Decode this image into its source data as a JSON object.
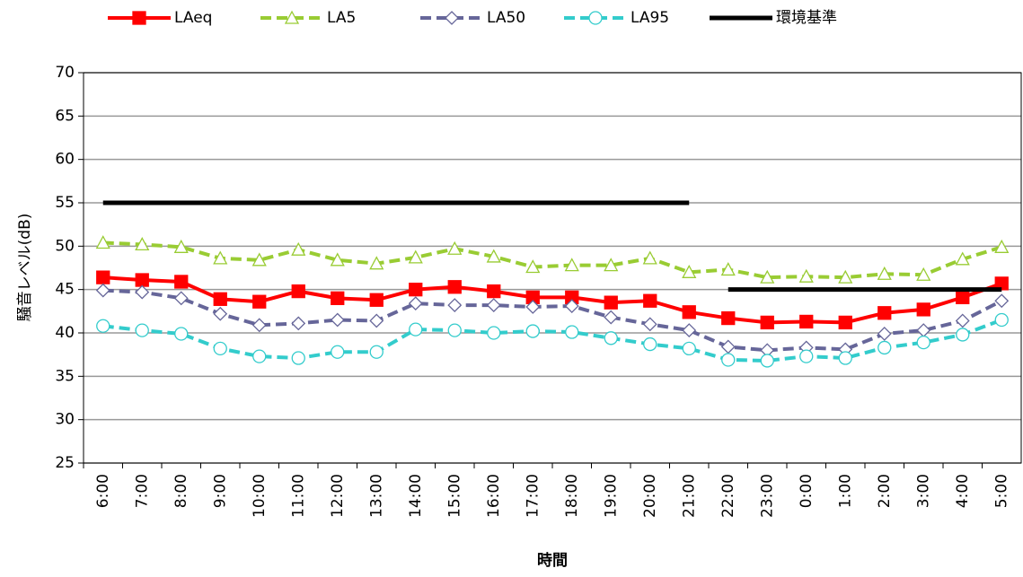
{
  "chart_data": {
    "type": "line",
    "y_label": "騒音レベル(dB)",
    "x_label": "時間",
    "categories": [
      "6:00",
      "7:00",
      "8:00",
      "9:00",
      "10:00",
      "11:00",
      "12:00",
      "13:00",
      "14:00",
      "15:00",
      "16:00",
      "17:00",
      "18:00",
      "19:00",
      "20:00",
      "21:00",
      "22:00",
      "23:00",
      "0:00",
      "1:00",
      "2:00",
      "3:00",
      "4:00",
      "5:00"
    ],
    "ylim": [
      25,
      70
    ],
    "yticks": [
      25,
      30,
      35,
      40,
      45,
      50,
      55,
      60,
      65,
      70
    ],
    "grid": true,
    "legend": "top",
    "series": [
      {
        "name": "LAeq",
        "color": "#ff0000",
        "marker": "square",
        "dash": "solid",
        "values": [
          46.4,
          46.1,
          45.9,
          43.9,
          43.6,
          44.8,
          44.0,
          43.8,
          45.0,
          45.3,
          44.8,
          44.1,
          44.1,
          43.5,
          43.7,
          42.4,
          41.7,
          41.2,
          41.3,
          41.2,
          42.3,
          42.7,
          44.1,
          45.7
        ]
      },
      {
        "name": "LA5",
        "color": "#99cc33",
        "marker": "triangle",
        "dash": "dashed",
        "values": [
          50.4,
          50.2,
          49.9,
          48.6,
          48.4,
          49.6,
          48.4,
          48.0,
          48.7,
          49.7,
          48.8,
          47.6,
          47.8,
          47.8,
          48.6,
          47.0,
          47.3,
          46.4,
          46.5,
          46.4,
          46.8,
          46.7,
          48.5,
          49.9
        ]
      },
      {
        "name": "LA50",
        "color": "#666699",
        "marker": "diamond",
        "dash": "dashed",
        "values": [
          44.9,
          44.7,
          44.0,
          42.2,
          40.9,
          41.1,
          41.5,
          41.4,
          43.4,
          43.2,
          43.2,
          43.0,
          43.1,
          41.8,
          41.0,
          40.3,
          38.4,
          38.0,
          38.3,
          38.1,
          39.9,
          40.3,
          41.4,
          43.7
        ]
      },
      {
        "name": "LA95",
        "color": "#33cccc",
        "marker": "circle",
        "dash": "dashed",
        "values": [
          40.8,
          40.3,
          39.9,
          38.2,
          37.3,
          37.1,
          37.8,
          37.8,
          40.4,
          40.3,
          40.0,
          40.2,
          40.1,
          39.4,
          38.7,
          38.2,
          36.9,
          36.8,
          37.3,
          37.1,
          38.3,
          38.9,
          39.8,
          41.5
        ]
      },
      {
        "name": "環境基準",
        "color": "#000000",
        "marker": "none",
        "dash": "solid",
        "line_style": "segments",
        "values": [
          55,
          55,
          55,
          55,
          55,
          55,
          55,
          55,
          55,
          55,
          55,
          55,
          55,
          55,
          55,
          55,
          45,
          45,
          45,
          45,
          45,
          45,
          45,
          45
        ]
      }
    ]
  }
}
